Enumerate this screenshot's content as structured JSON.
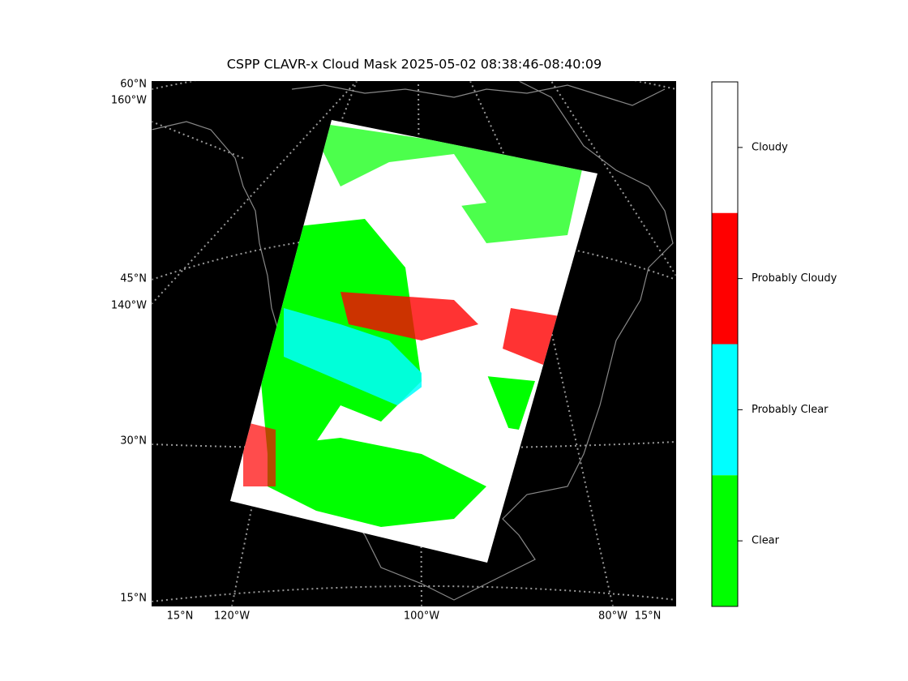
{
  "title": "CSPP CLAVR-x Cloud Mask 2025-05-02 08:38:46-08:40:09",
  "grid_labels": {
    "left": [
      "60°N",
      "160°W",
      "45°N",
      "140°W",
      "30°N",
      "15°N"
    ],
    "bottom": [
      "15°N",
      "120°W",
      "100°W",
      "80°W",
      "15°N"
    ]
  },
  "colorbar": {
    "labels": [
      "Cloudy",
      "Probably Cloudy",
      "Probably Clear",
      "Clear"
    ],
    "colors": [
      "#ffffff",
      "#ff0000",
      "#00ffff",
      "#00ff00"
    ]
  }
}
